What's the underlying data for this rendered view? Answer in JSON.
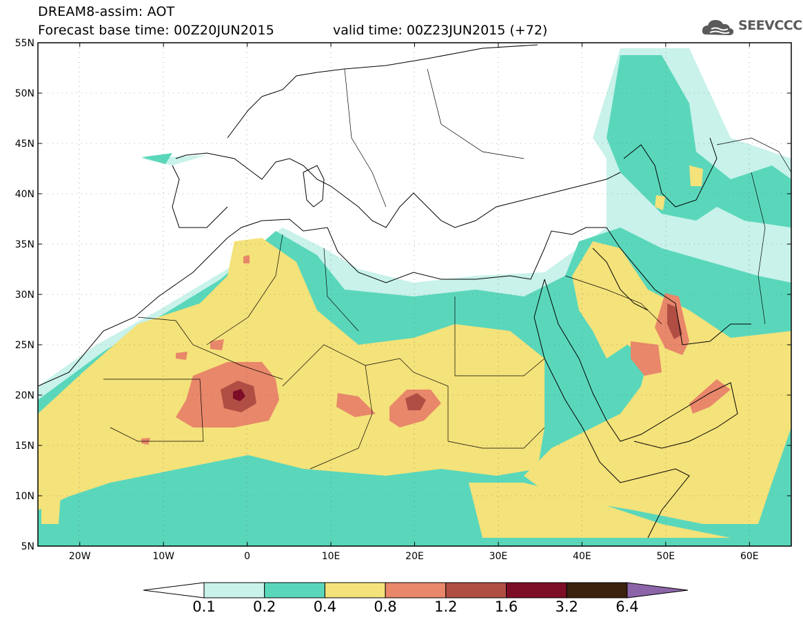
{
  "header": {
    "line1": "DREAM8-assim: AOT",
    "line2": "Forecast base time: 00Z20JUN2015",
    "valid": "valid time: 00Z23JUN2015 (+72)",
    "logo_text": "SEEVCCC"
  },
  "map": {
    "lon_range": [
      -25,
      65
    ],
    "lat_range": [
      5,
      55
    ],
    "lat_labels": [
      "55N",
      "50N",
      "45N",
      "40N",
      "35N",
      "30N",
      "25N",
      "20N",
      "15N",
      "10N",
      "5N"
    ],
    "lon_labels": [
      "20W",
      "10W",
      "0",
      "10E",
      "20E",
      "30E",
      "40E",
      "50E",
      "60E"
    ]
  },
  "legend": {
    "levels": [
      "0.1",
      "0.2",
      "0.4",
      "0.8",
      "1.2",
      "1.6",
      "3.2",
      "6.4"
    ],
    "colors": [
      "#c8f2ea",
      "#5ad7bb",
      "#f4e27a",
      "#e8876a",
      "#b04e44",
      "#7d0d26",
      "#3a220f",
      "#8c65a8"
    ]
  }
}
